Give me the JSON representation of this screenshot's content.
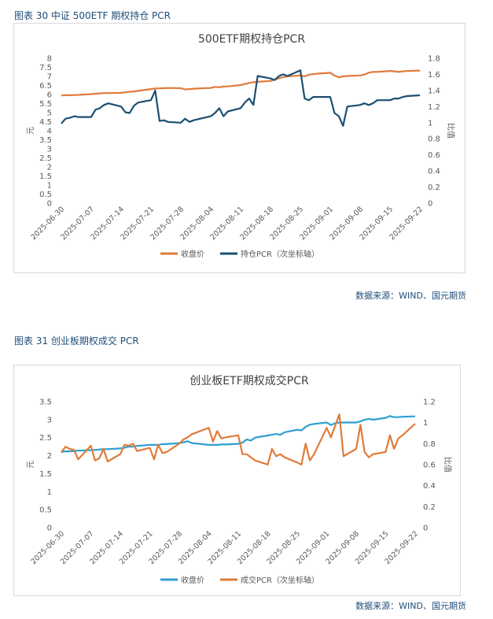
{
  "figures": [
    {
      "caption": "图表 30  中证 500ETF 期权持仓 PCR",
      "source": "数据来源：WIND、国元期货",
      "chart_data": {
        "type": "line",
        "title": "500ETF期权持仓PCR",
        "ylabel": "元",
        "y2label": "比值",
        "ylim": [
          0,
          8
        ],
        "y2lim": [
          0,
          1.8
        ],
        "yticks": [
          "0",
          "0.5",
          "1",
          "1.5",
          "2",
          "2.5",
          "3",
          "3.5",
          "4",
          "4.5",
          "5",
          "5.5",
          "6",
          "6.5",
          "7",
          "7.5",
          "8"
        ],
        "y2ticks": [
          "0",
          "0.2",
          "0.4",
          "0.6",
          "0.8",
          "1",
          "1.2",
          "1.4",
          "1.6",
          "1.8"
        ],
        "xticks": [
          "2025-06-30",
          "2025-07-07",
          "2025-07-14",
          "2025-07-21",
          "2025-07-28",
          "2025-08-04",
          "2025-08-11",
          "2025-08-18",
          "2025-08-25",
          "2025-09-01",
          "2025-09-08",
          "2025-09-15",
          "2025-09-22"
        ],
        "x": [
          0,
          1,
          2,
          3,
          4,
          7,
          8,
          9,
          10,
          11,
          14,
          15,
          16,
          17,
          18,
          21,
          22,
          23,
          24,
          25,
          28,
          29,
          30,
          31,
          35,
          36,
          37,
          38,
          39,
          42,
          43,
          44,
          45,
          46,
          49,
          50,
          51,
          52,
          53,
          56,
          57,
          58,
          59,
          60,
          63,
          64,
          65,
          66,
          67,
          70,
          71,
          72,
          73,
          74,
          77,
          78,
          79,
          80,
          81,
          84
        ],
        "series": [
          {
            "name": "收盘价",
            "axis": "left",
            "color": "#e07b39",
            "values": [
              5.95,
              5.96,
              5.96,
              5.97,
              5.98,
              6.02,
              6.04,
              6.06,
              6.08,
              6.08,
              6.09,
              6.12,
              6.15,
              6.17,
              6.2,
              6.3,
              6.33,
              6.34,
              6.35,
              6.36,
              6.35,
              6.28,
              6.3,
              6.32,
              6.36,
              6.42,
              6.4,
              6.44,
              6.45,
              6.52,
              6.58,
              6.64,
              6.68,
              6.7,
              6.75,
              6.82,
              6.9,
              6.96,
              7.0,
              7.05,
              7.0,
              7.1,
              7.12,
              7.15,
              7.2,
              7.05,
              6.95,
              7.0,
              7.02,
              7.05,
              7.1,
              7.2,
              7.25,
              7.25,
              7.3,
              7.28,
              7.25,
              7.28,
              7.3,
              7.32
            ]
          },
          {
            "name": "持仓PCR（次坐标轴）",
            "axis": "right",
            "color": "#1b4f72",
            "values": [
              0.99,
              1.05,
              1.06,
              1.08,
              1.07,
              1.07,
              1.16,
              1.18,
              1.22,
              1.24,
              1.2,
              1.13,
              1.12,
              1.21,
              1.25,
              1.28,
              1.4,
              1.02,
              1.03,
              1.01,
              1.0,
              1.05,
              1.01,
              1.03,
              1.08,
              1.12,
              1.18,
              1.08,
              1.14,
              1.18,
              1.25,
              1.3,
              1.22,
              1.58,
              1.55,
              1.53,
              1.58,
              1.6,
              1.58,
              1.65,
              1.3,
              1.28,
              1.32,
              1.32,
              1.32,
              1.12,
              1.08,
              0.96,
              1.2,
              1.22,
              1.24,
              1.22,
              1.24,
              1.28,
              1.28,
              1.3,
              1.3,
              1.32,
              1.33,
              1.34
            ]
          }
        ],
        "legend": "bottom"
      }
    },
    {
      "caption": "图表 31  创业板期权成交 PCR",
      "source": "数据来源：WIND、国元期货",
      "chart_data": {
        "type": "line",
        "title": "创业板ETF期权成交PCR",
        "ylabel": "元",
        "y2label": "比值",
        "ylim": [
          0,
          3.5
        ],
        "y2lim": [
          0,
          1.2
        ],
        "yticks": [
          "0",
          "0.5",
          "1",
          "1.5",
          "2",
          "2.5",
          "3",
          "3.5"
        ],
        "y2ticks": [
          "0",
          "0.2",
          "0.4",
          "0.6",
          "0.8",
          "1",
          "1.2"
        ],
        "xticks": [
          "2025-06-30",
          "2025-07-07",
          "2025-07-14",
          "2025-07-21",
          "2025-07-28",
          "2025-08-04",
          "2025-08-11",
          "2025-08-18",
          "2025-08-25",
          "2025-09-01",
          "2025-09-08",
          "2025-09-15",
          "2025-09-22"
        ],
        "x": [
          0,
          1,
          2,
          3,
          4,
          7,
          8,
          9,
          10,
          11,
          14,
          15,
          16,
          17,
          18,
          21,
          22,
          23,
          24,
          25,
          28,
          29,
          30,
          31,
          35,
          36,
          37,
          38,
          39,
          42,
          43,
          44,
          45,
          46,
          49,
          50,
          51,
          52,
          53,
          56,
          57,
          58,
          59,
          60,
          63,
          64,
          65,
          66,
          67,
          70,
          71,
          72,
          73,
          74,
          77,
          78,
          79,
          80,
          81,
          84
        ],
        "series": [
          {
            "name": "收盘价",
            "axis": "left",
            "color": "#2e9fd0",
            "values": [
              2.1,
              2.12,
              2.12,
              2.13,
              2.14,
              2.15,
              2.16,
              2.17,
              2.18,
              2.18,
              2.2,
              2.22,
              2.25,
              2.25,
              2.27,
              2.3,
              2.3,
              2.3,
              2.32,
              2.32,
              2.35,
              2.37,
              2.4,
              2.35,
              2.3,
              2.3,
              2.3,
              2.31,
              2.31,
              2.33,
              2.36,
              2.45,
              2.42,
              2.5,
              2.56,
              2.58,
              2.6,
              2.58,
              2.65,
              2.72,
              2.7,
              2.8,
              2.86,
              2.88,
              2.92,
              2.85,
              2.9,
              2.92,
              2.92,
              2.92,
              2.95,
              3.0,
              3.02,
              3.0,
              3.05,
              3.1,
              3.07,
              3.07,
              3.08,
              3.09
            ]
          },
          {
            "name": "成交PCR（次坐标轴）",
            "axis": "right",
            "color": "#e07b39",
            "values": [
              0.72,
              0.77,
              0.75,
              0.74,
              0.65,
              0.78,
              0.64,
              0.66,
              0.75,
              0.63,
              0.7,
              0.79,
              0.78,
              0.8,
              0.73,
              0.76,
              0.65,
              0.79,
              0.71,
              0.72,
              0.8,
              0.84,
              0.86,
              0.89,
              0.95,
              0.82,
              0.92,
              0.85,
              0.86,
              0.88,
              0.7,
              0.7,
              0.67,
              0.64,
              0.6,
              0.75,
              0.68,
              0.7,
              0.67,
              0.62,
              0.6,
              0.8,
              0.64,
              0.7,
              0.95,
              0.86,
              0.97,
              1.08,
              0.68,
              0.75,
              0.98,
              0.72,
              0.67,
              0.7,
              0.72,
              0.88,
              0.75,
              0.85,
              0.88,
              0.99
            ]
          }
        ],
        "legend": "bottom"
      }
    }
  ]
}
